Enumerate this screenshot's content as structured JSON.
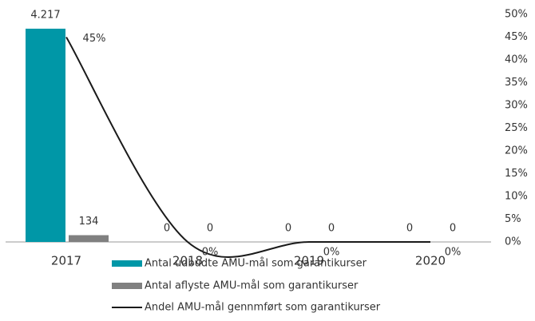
{
  "chart_data": {
    "type": "bar-line",
    "categories": [
      "2017",
      "2018",
      "2019",
      "2020"
    ],
    "series": [
      {
        "name": "Antal udbudte AMU-mål som garantikurser",
        "color": "#0097a7",
        "type": "bar",
        "values": [
          4217,
          0,
          0,
          0
        ],
        "value_labels": [
          "4.217",
          "0",
          "0",
          "0"
        ]
      },
      {
        "name": "Antal aflyste AMU-mål som garantikurser",
        "color": "#808080",
        "type": "bar",
        "values": [
          134,
          0,
          0,
          0
        ]
      },
      {
        "name": "Andel  AMU-mål gennmført som garantikurser",
        "color": "#1a1a1a",
        "type": "line",
        "axis": "y2",
        "values": [
          45,
          0,
          0,
          0
        ],
        "value_labels": [
          "45%",
          "0%",
          "0%",
          "0%"
        ]
      }
    ],
    "ylim": [
      0,
      4500
    ],
    "y2lim": [
      0,
      50
    ],
    "y2ticks": [
      {
        "value": 0,
        "label": "0%"
      },
      {
        "value": 5,
        "label": "5%"
      },
      {
        "value": 10,
        "label": "10%"
      },
      {
        "value": 15,
        "label": "15%"
      },
      {
        "value": 20,
        "label": "20%"
      },
      {
        "value": 25,
        "label": "25%"
      },
      {
        "value": 30,
        "label": "30%"
      },
      {
        "value": 35,
        "label": "35%"
      },
      {
        "value": 40,
        "label": "40%"
      },
      {
        "value": 45,
        "label": "45%"
      },
      {
        "value": 50,
        "label": "50%"
      }
    ]
  }
}
